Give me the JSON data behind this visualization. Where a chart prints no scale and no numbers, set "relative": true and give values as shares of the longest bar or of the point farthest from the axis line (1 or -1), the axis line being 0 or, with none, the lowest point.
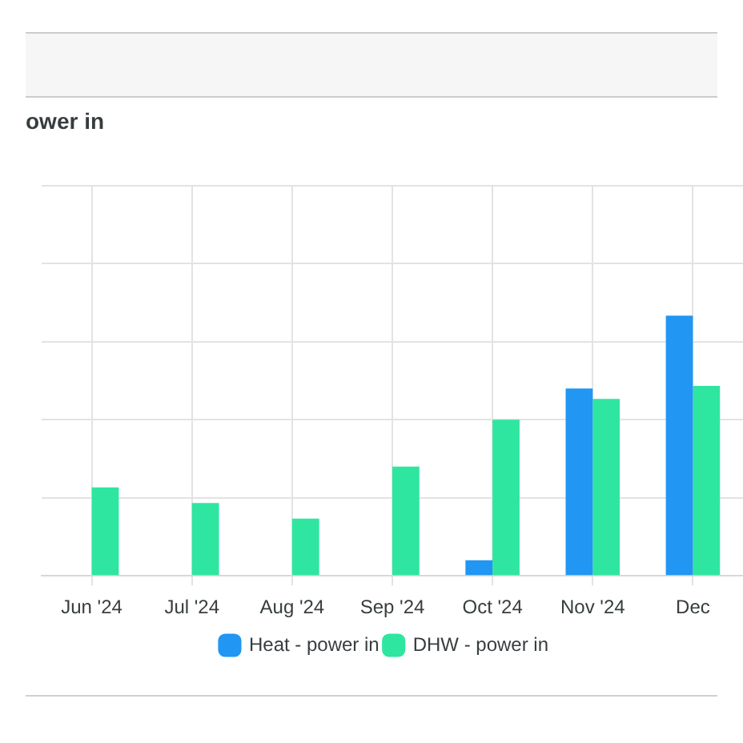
{
  "chart_data": {
    "type": "bar",
    "title": "ower in",
    "categories": [
      "Jun '24",
      "Jul '24",
      "Aug '24",
      "Sep '24",
      "Oct '24",
      "Nov '24",
      "Dec"
    ],
    "relative": true,
    "series": [
      {
        "name": "Heat - power in",
        "color": "#2196f3",
        "values": [
          null,
          null,
          null,
          null,
          0.06,
          0.72,
          1
        ]
      },
      {
        "name": "DHW - power in",
        "color": "#2ee6a0",
        "values": [
          0.34,
          0.28,
          0.22,
          0.42,
          0.6,
          0.68,
          0.73
        ]
      }
    ],
    "grid": true,
    "legend": "bottom"
  }
}
